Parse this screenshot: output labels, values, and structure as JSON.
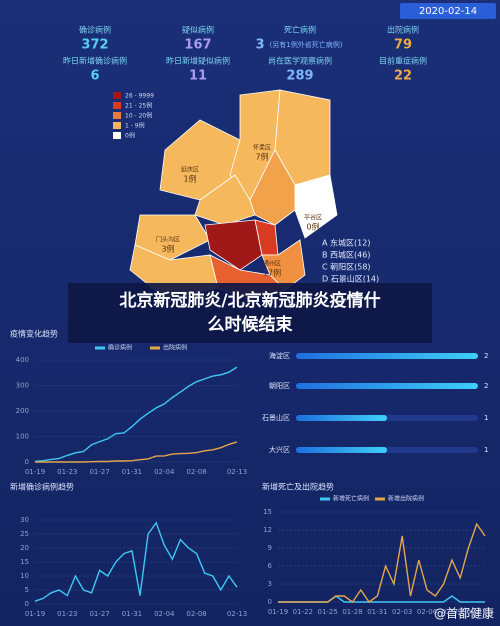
{
  "date": "2020-02-14",
  "stats": [
    {
      "label": "确诊病例",
      "value": 372,
      "color": "#56cff2"
    },
    {
      "label": "疑似病例",
      "value": 167,
      "color": "#a99cf0"
    },
    {
      "label": "死亡病例",
      "value": 3,
      "note": "(另有1例外省死亡病例)",
      "color": "#7fb6ff"
    },
    {
      "label": "出院病例",
      "value": 79,
      "color": "#f0a844"
    },
    {
      "label": "昨日新增确诊病例",
      "value": 6,
      "color": "#56cff2"
    },
    {
      "label": "昨日新增疑似病例",
      "value": 11,
      "color": "#a99cf0"
    },
    {
      "label": "尚在医学观察病例",
      "value": 289,
      "color": "#7fb6ff"
    },
    {
      "label": "目前重症病例",
      "value": 22,
      "color": "#f0a844"
    }
  ],
  "map": {
    "legend": [
      {
        "label": "26 - 9999",
        "color": "#a01818"
      },
      {
        "label": "21 - 25例",
        "color": "#d83a22"
      },
      {
        "label": "10 - 20例",
        "color": "#ee7a3a"
      },
      {
        "label": "1 - 9例",
        "color": "#f5b45a"
      },
      {
        "label": "0例",
        "color": "#ffffff"
      }
    ],
    "districts": [
      {
        "name": "延庆区",
        "count": "1例"
      },
      {
        "name": "怀柔区",
        "count": "7例"
      },
      {
        "name": "平谷区",
        "count": "0例"
      },
      {
        "name": "门头沟区",
        "count": "3例"
      },
      {
        "name": "通州区",
        "count": "17例"
      }
    ],
    "list": [
      "A 东城区(12)",
      "B 西城区(46)",
      "C 朝阳区(58)",
      "D 石景山区(14)"
    ]
  },
  "overlay_title": "北京新冠肺炎/北京新冠肺炎疫情什么时候结束",
  "watermark": "@首都健康",
  "chart_data": [
    {
      "type": "line",
      "title": "疫情变化趋势",
      "categories": [
        "01-19",
        null,
        null,
        null,
        "01-23",
        null,
        null,
        null,
        "01-27",
        null,
        null,
        null,
        "01-31",
        null,
        null,
        null,
        "02-04",
        null,
        null,
        null,
        "02-08",
        null,
        null,
        null,
        null,
        "02-13"
      ],
      "series": [
        {
          "name": "确诊病例",
          "color": "#3fc8f5",
          "values": [
            2,
            5,
            10,
            14,
            26,
            36,
            41,
            68,
            80,
            91,
            111,
            114,
            139,
            168,
            191,
            212,
            228,
            253,
            274,
            297,
            315,
            326,
            337,
            342,
            352,
            372
          ]
        },
        {
          "name": "出院病例",
          "color": "#e3a64a",
          "values": [
            0,
            0,
            0,
            0,
            0,
            0,
            0,
            1,
            2,
            2,
            4,
            4,
            5,
            9,
            12,
            23,
            24,
            31,
            33,
            34,
            37,
            44,
            48,
            56,
            69,
            79
          ]
        }
      ],
      "ylim": [
        0,
        400
      ],
      "yticks": [
        0,
        100,
        200,
        300,
        400
      ],
      "grid": true
    },
    {
      "type": "hbar",
      "categories": [
        "海淀区",
        "朝阳区",
        "石景山区",
        "大兴区"
      ],
      "values": [
        2,
        2,
        1,
        1
      ],
      "xlim": [
        0,
        2
      ],
      "color": "#2f8ef0"
    },
    {
      "type": "line",
      "title": "新增确诊病例趋势",
      "categories": [
        "01-19",
        null,
        null,
        null,
        "01-23",
        null,
        null,
        null,
        "01-27",
        null,
        null,
        null,
        "01-31",
        null,
        null,
        null,
        "02-04",
        null,
        null,
        null,
        "02-08",
        null,
        null,
        null,
        null,
        "02-13"
      ],
      "series": [
        {
          "name": "新增确诊病例",
          "color": "#3fc8f5",
          "values": [
            1,
            2,
            4,
            5,
            3,
            10,
            5,
            4,
            12,
            10,
            15,
            18,
            19,
            3,
            25,
            29,
            21,
            16,
            23,
            20,
            18,
            11,
            10,
            5,
            10,
            6
          ]
        }
      ],
      "ylim": [
        0,
        30
      ],
      "yticks": [
        0,
        5,
        10,
        15,
        20,
        25,
        30
      ],
      "grid": true,
      "legend": false
    },
    {
      "type": "line",
      "title": "新增死亡及出院趋势",
      "categories": [
        "01-19",
        null,
        null,
        "01-22",
        null,
        null,
        "01-25",
        null,
        null,
        "01-28",
        null,
        null,
        "01-31",
        null,
        null,
        "02-03",
        null,
        null,
        "02-06",
        null,
        null,
        "02-09",
        null,
        null,
        "02-12",
        null
      ],
      "series": [
        {
          "name": "新增死亡病例",
          "color": "#3fc8f5",
          "values": [
            0,
            0,
            0,
            0,
            0,
            0,
            0,
            1,
            0,
            0,
            0,
            0,
            0,
            0,
            0,
            0,
            0,
            0,
            0,
            0,
            0,
            1,
            0,
            0,
            0,
            0
          ]
        },
        {
          "name": "新增出院病例",
          "color": "#e3a64a",
          "values": [
            0,
            0,
            0,
            0,
            0,
            0,
            0,
            1,
            1,
            0,
            2,
            0,
            1,
            6,
            3,
            11,
            1,
            7,
            2,
            1,
            3,
            7,
            4,
            9,
            13,
            11
          ]
        }
      ],
      "ylim": [
        0,
        15
      ],
      "yticks": [
        0,
        3,
        6,
        9,
        12,
        15
      ],
      "grid": true
    }
  ]
}
